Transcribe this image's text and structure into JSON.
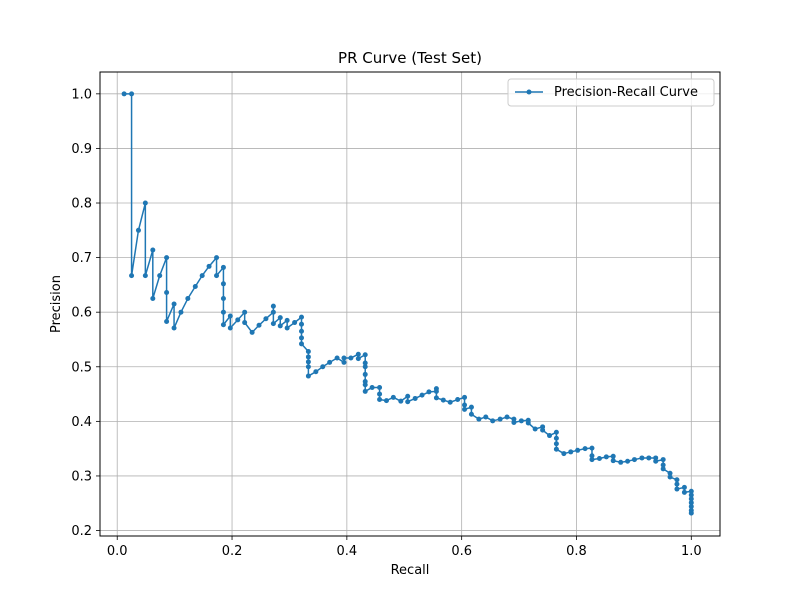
{
  "chart_data": {
    "type": "line",
    "title": "PR Curve (Test Set)",
    "xlabel": "Recall",
    "ylabel": "Precision",
    "xlim": [
      -0.03,
      1.05
    ],
    "ylim": [
      0.19,
      1.04
    ],
    "x_ticks": [
      0.0,
      0.2,
      0.4,
      0.6,
      0.8,
      1.0
    ],
    "x_tick_labels": [
      "0.0",
      "0.2",
      "0.4",
      "0.6",
      "0.8",
      "1.0"
    ],
    "y_ticks": [
      0.2,
      0.3,
      0.4,
      0.5,
      0.6,
      0.7,
      0.8,
      0.9,
      1.0
    ],
    "y_tick_labels": [
      "0.2",
      "0.3",
      "0.4",
      "0.5",
      "0.6",
      "0.7",
      "0.8",
      "0.9",
      "1.0"
    ],
    "grid": true,
    "legend_position": "top-right",
    "color": "#1f77b4",
    "marker": "circle",
    "series": [
      {
        "name": "Precision-Recall Curve",
        "x": [
          0.012,
          0.025,
          0.025,
          0.037,
          0.049,
          0.049,
          0.062,
          0.062,
          0.074,
          0.086,
          0.086,
          0.086,
          0.099,
          0.099,
          0.111,
          0.123,
          0.136,
          0.148,
          0.16,
          0.173,
          0.173,
          0.185,
          0.185,
          0.185,
          0.185,
          0.185,
          0.197,
          0.197,
          0.21,
          0.222,
          0.222,
          0.235,
          0.247,
          0.259,
          0.272,
          0.272,
          0.272,
          0.284,
          0.284,
          0.296,
          0.296,
          0.309,
          0.321,
          0.321,
          0.321,
          0.321,
          0.321,
          0.333,
          0.333,
          0.333,
          0.333,
          0.333,
          0.346,
          0.358,
          0.37,
          0.383,
          0.395,
          0.395,
          0.407,
          0.42,
          0.42,
          0.432,
          0.432,
          0.432,
          0.432,
          0.432,
          0.432,
          0.432,
          0.444,
          0.457,
          0.457,
          0.457,
          0.469,
          0.481,
          0.494,
          0.506,
          0.506,
          0.519,
          0.531,
          0.543,
          0.556,
          0.556,
          0.556,
          0.568,
          0.58,
          0.593,
          0.605,
          0.605,
          0.605,
          0.617,
          0.617,
          0.63,
          0.642,
          0.654,
          0.667,
          0.679,
          0.691,
          0.691,
          0.704,
          0.716,
          0.716,
          0.728,
          0.741,
          0.741,
          0.753,
          0.765,
          0.765,
          0.765,
          0.765,
          0.778,
          0.79,
          0.802,
          0.815,
          0.827,
          0.827,
          0.827,
          0.84,
          0.852,
          0.864,
          0.864,
          0.877,
          0.889,
          0.901,
          0.914,
          0.926,
          0.938,
          0.938,
          0.951,
          0.951,
          0.951,
          0.963,
          0.963,
          0.975,
          0.975,
          0.975,
          0.988,
          0.988,
          1.0,
          1.0,
          1.0,
          1.0,
          1.0,
          1.0,
          1.0
        ],
        "y": [
          1.0,
          1.0,
          0.667,
          0.75,
          0.8,
          0.667,
          0.714,
          0.625,
          0.667,
          0.7,
          0.636,
          0.583,
          0.615,
          0.571,
          0.6,
          0.625,
          0.647,
          0.667,
          0.684,
          0.7,
          0.667,
          0.682,
          0.652,
          0.625,
          0.6,
          0.577,
          0.593,
          0.571,
          0.586,
          0.6,
          0.581,
          0.563,
          0.576,
          0.588,
          0.6,
          0.611,
          0.579,
          0.59,
          0.575,
          0.585,
          0.571,
          0.581,
          0.591,
          0.578,
          0.565,
          0.553,
          0.542,
          0.528,
          0.518,
          0.509,
          0.5,
          0.483,
          0.491,
          0.5,
          0.508,
          0.516,
          0.508,
          0.516,
          0.516,
          0.523,
          0.515,
          0.522,
          0.507,
          0.5,
          0.486,
          0.473,
          0.467,
          0.455,
          0.462,
          0.462,
          0.45,
          0.44,
          0.438,
          0.444,
          0.437,
          0.446,
          0.436,
          0.442,
          0.448,
          0.454,
          0.455,
          0.46,
          0.443,
          0.439,
          0.435,
          0.44,
          0.444,
          0.43,
          0.422,
          0.426,
          0.413,
          0.404,
          0.408,
          0.401,
          0.404,
          0.408,
          0.404,
          0.398,
          0.401,
          0.402,
          0.397,
          0.386,
          0.39,
          0.384,
          0.374,
          0.38,
          0.369,
          0.359,
          0.349,
          0.341,
          0.344,
          0.347,
          0.35,
          0.351,
          0.337,
          0.33,
          0.332,
          0.335,
          0.336,
          0.328,
          0.325,
          0.327,
          0.33,
          0.333,
          0.333,
          0.333,
          0.327,
          0.33,
          0.32,
          0.313,
          0.305,
          0.298,
          0.293,
          0.285,
          0.276,
          0.279,
          0.27,
          0.272,
          0.265,
          0.258,
          0.251,
          0.244,
          0.237,
          0.232
        ]
      }
    ]
  }
}
